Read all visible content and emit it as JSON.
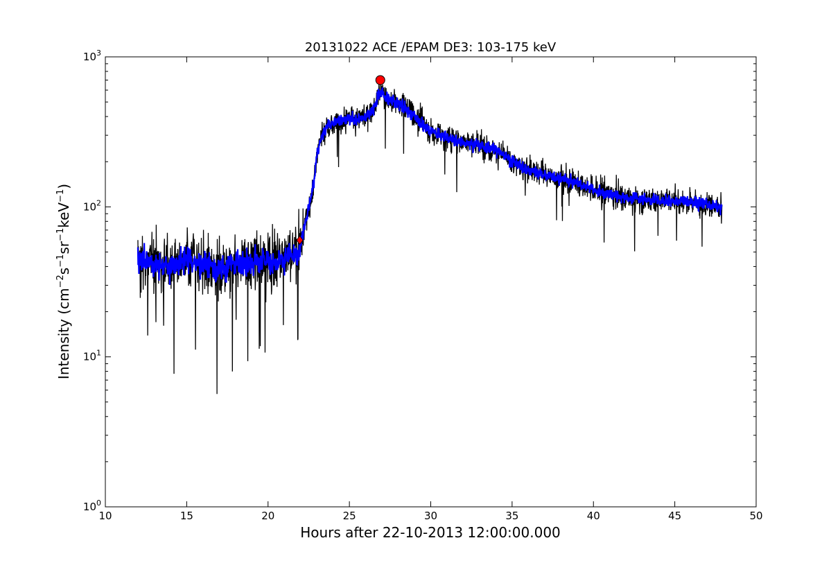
{
  "chart_data": {
    "type": "line",
    "title": "20131022 ACE /EPAM DE3: 103-175 keV",
    "xlabel": "Hours after 22-10-2013 12:00:00.000",
    "ylabel": "Intensity (cm-2 s-1 sr-1 keV-1)",
    "ylabel_parts": [
      "Intensity (cm",
      "−2",
      "s",
      "−1",
      "sr",
      "−1",
      "keV",
      "−1",
      ")"
    ],
    "xlim": [
      10,
      50
    ],
    "ylim": [
      1,
      1000
    ],
    "yscale": "log",
    "grid": false,
    "x_ticks": [
      "10",
      "15",
      "20",
      "25",
      "30",
      "35",
      "40",
      "45",
      "50"
    ],
    "y_ticks": [
      {
        "base": "10",
        "exp": "0"
      },
      {
        "base": "10",
        "exp": "1"
      },
      {
        "base": "10",
        "exp": "2"
      },
      {
        "base": "10",
        "exp": "3"
      }
    ],
    "colors": {
      "raw": "#000000",
      "smoothed": "#0000ff",
      "peak_marker": "#ff0000",
      "onset_marker": "#ff0000"
    },
    "series": [
      {
        "x": [
          12.0,
          13.0,
          14.0,
          15.0,
          16.0,
          17.0,
          18.0,
          19.0,
          20.0,
          21.0,
          21.8,
          22.0,
          22.2,
          22.5,
          22.8,
          23.0,
          23.3,
          23.6,
          24.0,
          24.5,
          25.0,
          25.5,
          26.0,
          26.5,
          26.9,
          27.3,
          27.8,
          28.5,
          29.0,
          30.0,
          31.0,
          32.0,
          33.0,
          34.0,
          35.0,
          36.0,
          37.0,
          38.0,
          39.0,
          40.0,
          41.0,
          42.0,
          43.0,
          44.0,
          45.0,
          46.0,
          47.0,
          47.9
        ],
        "y": [
          45,
          42,
          40,
          44,
          41,
          38,
          42,
          43,
          44,
          46,
          47,
          55,
          70,
          100,
          140,
          220,
          300,
          340,
          360,
          380,
          390,
          385,
          400,
          450,
          600,
          520,
          500,
          450,
          400,
          320,
          290,
          270,
          260,
          240,
          200,
          175,
          165,
          155,
          145,
          130,
          120,
          115,
          112,
          110,
          110,
          108,
          105,
          95
        ]
      }
    ],
    "markers": [
      {
        "x": 26.9,
        "y": 700,
        "shape": "circle"
      },
      {
        "x": 21.95,
        "y": 60,
        "shape": "diamond"
      }
    ]
  }
}
